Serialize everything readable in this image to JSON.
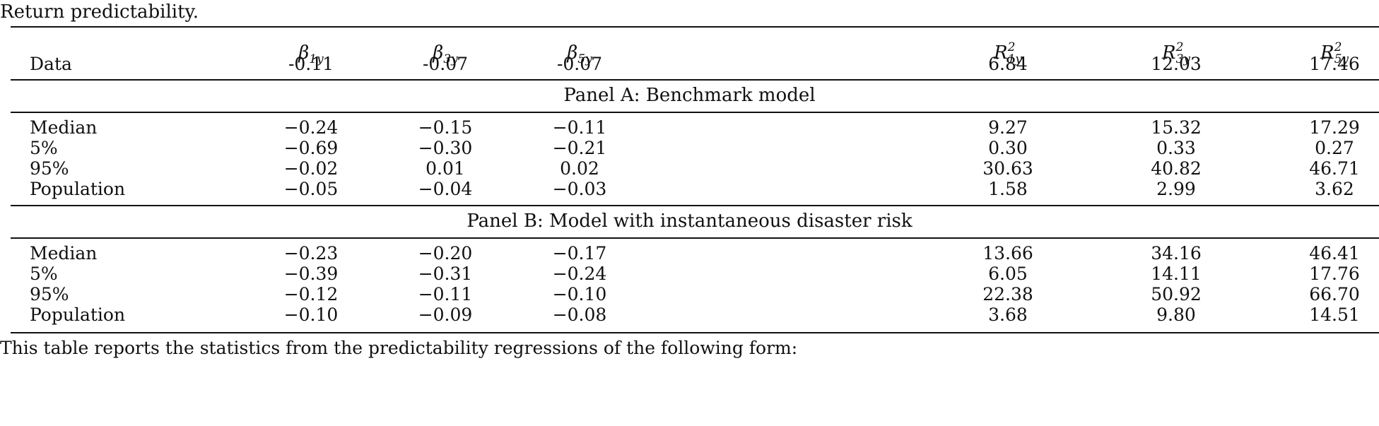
{
  "caption": "Return predictability.",
  "headers": {
    "beta_1y": "1y",
    "beta_3y": "3y",
    "beta_5y": "5y",
    "r2_1y": "1y",
    "r2_3y": "3y",
    "r2_5y": "5y",
    "beta_symbol": "β",
    "r_symbol": "R",
    "r_exponent": "2"
  },
  "data_row": {
    "label": "Data",
    "values": [
      "-0.11",
      "-0.07",
      "-0.07",
      "6.84",
      "12.03",
      "17.46"
    ]
  },
  "panels": [
    {
      "title": "Panel A: Benchmark model",
      "rows": [
        {
          "label": "Median",
          "values": [
            "−0.24",
            "−0.15",
            "−0.11",
            "9.27",
            "15.32",
            "17.29"
          ]
        },
        {
          "label": "5%",
          "values": [
            "−0.69",
            "−0.30",
            "−0.21",
            "0.30",
            "0.33",
            "0.27"
          ]
        },
        {
          "label": "95%",
          "values": [
            "−0.02",
            "0.01",
            "0.02",
            "30.63",
            "40.82",
            "46.71"
          ]
        },
        {
          "label": "Population",
          "values": [
            "−0.05",
            "−0.04",
            "−0.03",
            "1.58",
            "2.99",
            "3.62"
          ]
        }
      ]
    },
    {
      "title": "Panel B: Model with instantaneous disaster risk",
      "rows": [
        {
          "label": "Median",
          "values": [
            "−0.23",
            "−0.20",
            "−0.17",
            "13.66",
            "34.16",
            "46.41"
          ]
        },
        {
          "label": "5%",
          "values": [
            "−0.39",
            "−0.31",
            "−0.24",
            "6.05",
            "14.11",
            "17.76"
          ]
        },
        {
          "label": "95%",
          "values": [
            "−0.12",
            "−0.11",
            "−0.10",
            "22.38",
            "50.92",
            "66.70"
          ]
        },
        {
          "label": "Population",
          "values": [
            "−0.10",
            "−0.09",
            "−0.08",
            "3.68",
            "9.80",
            "14.51"
          ]
        }
      ]
    }
  ],
  "footnote": "This table reports the statistics from the predictability regressions of the following form:"
}
